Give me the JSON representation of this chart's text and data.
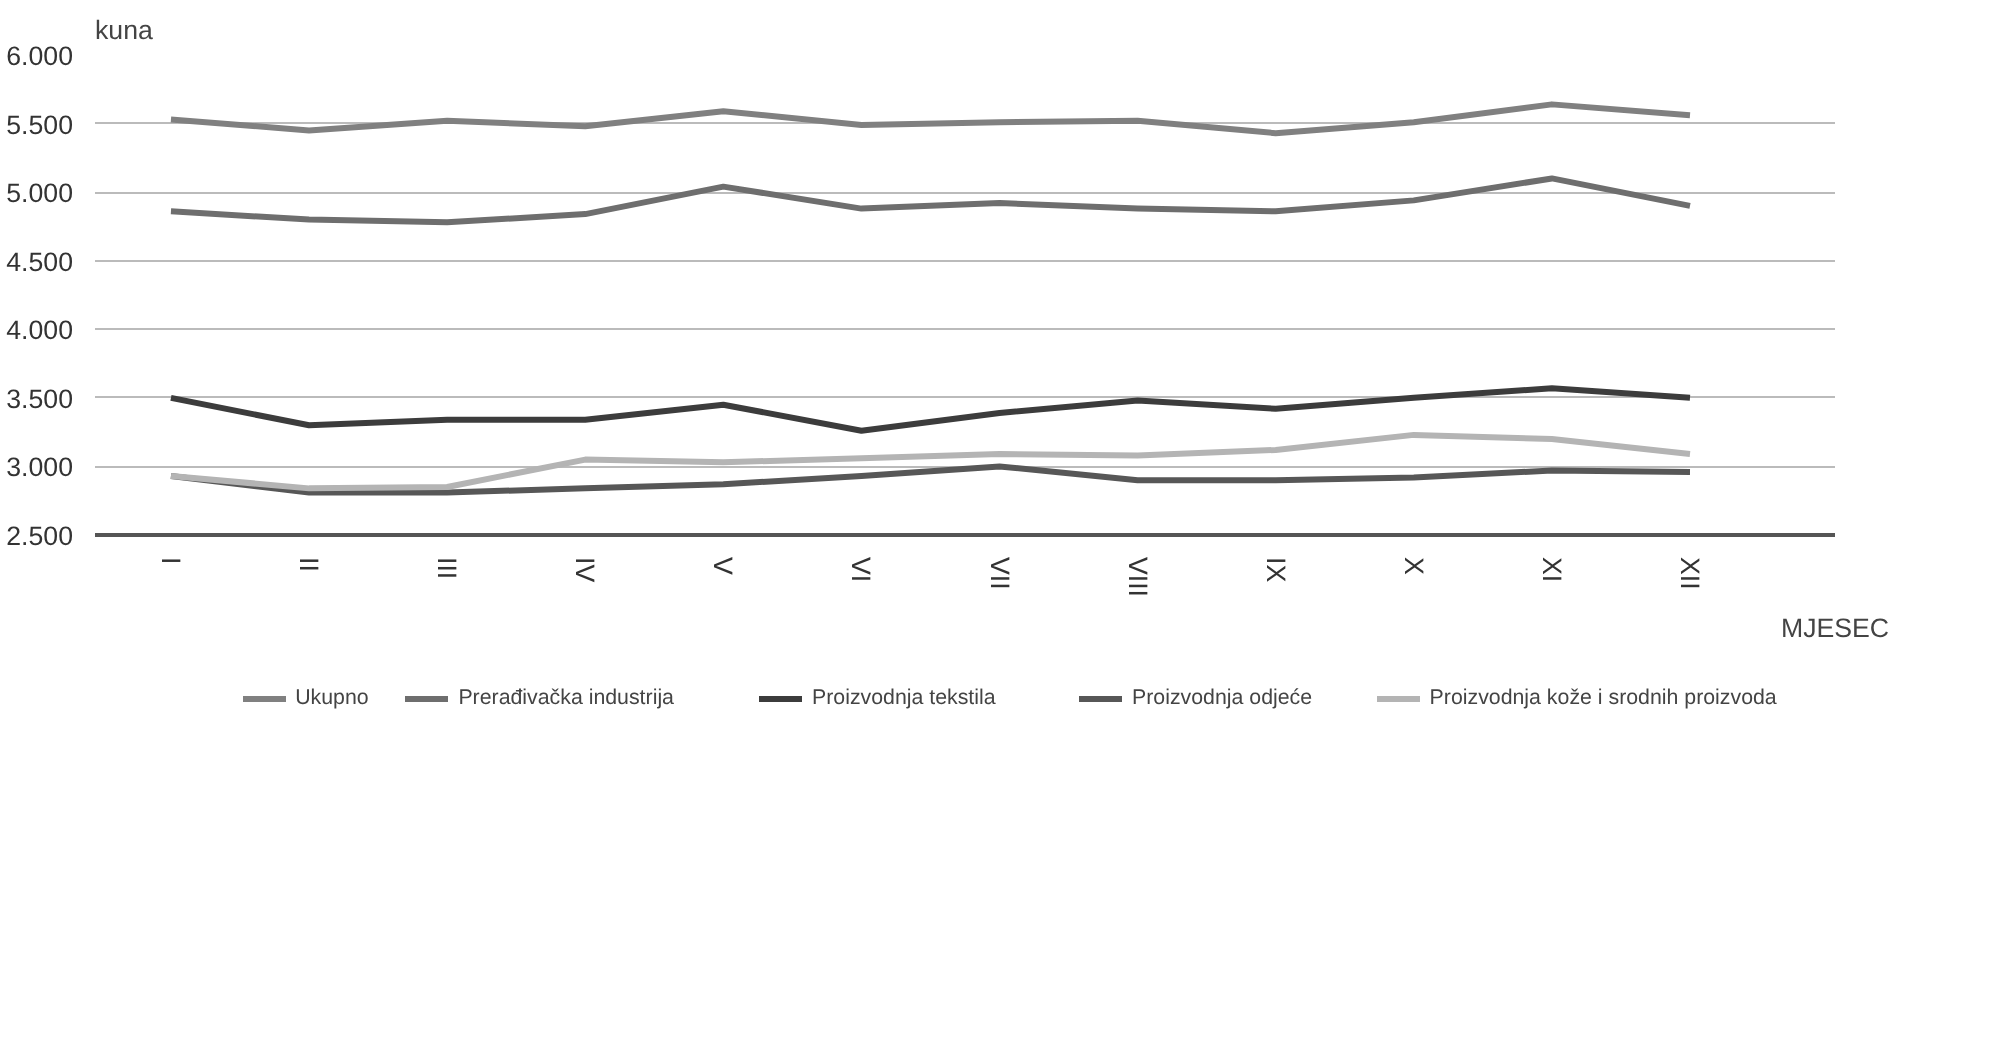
{
  "chart_data": {
    "type": "line",
    "xlabel": "MJESEC",
    "ylabel": "kuna",
    "categories": [
      "I",
      "II",
      "III",
      "IV",
      "V",
      "VI",
      "VII",
      "VIII",
      "IX",
      "X",
      "XI",
      "XII"
    ],
    "series": [
      {
        "name": "Ukupno",
        "color": "#808080",
        "values": [
          5530,
          5450,
          5520,
          5480,
          5590,
          5490,
          5510,
          5520,
          5430,
          5510,
          5640,
          5560
        ]
      },
      {
        "name": "Prerađivačka industrija",
        "color": "#6e6e6e",
        "values": [
          4860,
          4800,
          4780,
          4840,
          5040,
          4880,
          4920,
          4880,
          4860,
          4940,
          5100,
          4900
        ]
      },
      {
        "name": "Proizvodnja tekstila",
        "color": "#3c3c3c",
        "values": [
          3500,
          3300,
          3340,
          3340,
          3450,
          3260,
          3390,
          3480,
          3420,
          3500,
          3570,
          3500
        ]
      },
      {
        "name": "Proizvodnja odjeće",
        "color": "#575757",
        "values": [
          2930,
          2810,
          2810,
          2840,
          2870,
          2930,
          3000,
          2900,
          2900,
          2920,
          2970,
          2960
        ]
      },
      {
        "name": "Proizvodnja kože i srodnih proizvoda",
        "color": "#b4b4b4",
        "values": [
          2930,
          2840,
          2850,
          3050,
          3030,
          3060,
          3090,
          3080,
          3120,
          3230,
          3200,
          3090
        ]
      }
    ],
    "ylim": [
      2500,
      6000
    ],
    "yticks": [
      {
        "value": 2500,
        "label": "2.500"
      },
      {
        "value": 3000,
        "label": "3.000"
      },
      {
        "value": 3500,
        "label": "3.500"
      },
      {
        "value": 4000,
        "label": "4.000"
      },
      {
        "value": 4500,
        "label": "4.500"
      },
      {
        "value": 5000,
        "label": "5.000"
      },
      {
        "value": 5500,
        "label": "5.500"
      },
      {
        "value": 6000,
        "label": "6.000"
      }
    ],
    "grid": "y",
    "legend": "bottom",
    "marker": "none",
    "line_style": "solid"
  }
}
